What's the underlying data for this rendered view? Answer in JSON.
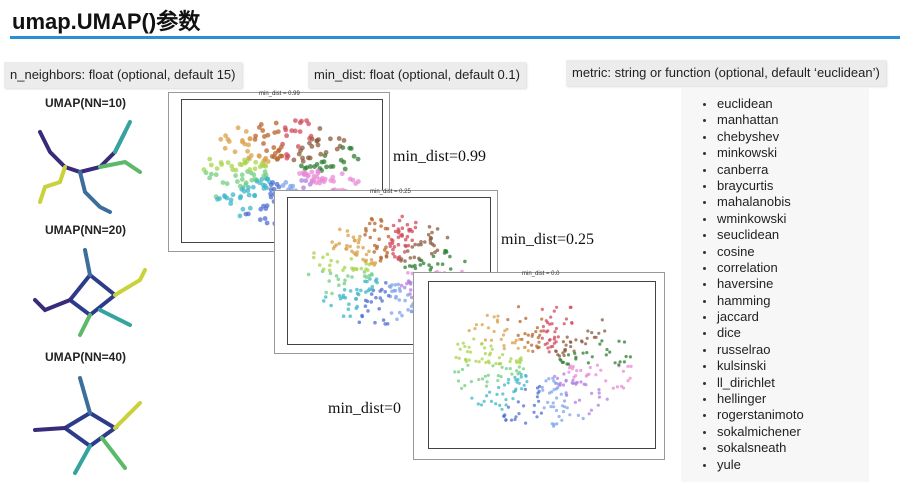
{
  "title": "umap.UMAP()参数",
  "params": {
    "n_neighbors": "n_neighbors: float (optional, default 15)",
    "min_dist": "min_dist: float (optional, default 0.1)",
    "metric": "metric: string or function (optional, default ‘euclidean’)"
  },
  "nn_examples": [
    "UMAP(NN=10)",
    "UMAP(NN=20)",
    "UMAP(NN=40)"
  ],
  "min_dist_plots": [
    {
      "plot_title": "min_dist = 0.99",
      "label": "min_dist=0.99"
    },
    {
      "plot_title": "min_dist = 0.25",
      "label": "min_dist=0.25"
    },
    {
      "plot_title": "min_dist = 0.0",
      "label": "min_dist=0"
    }
  ],
  "metrics": [
    "euclidean",
    "manhattan",
    "chebyshev",
    "minkowski",
    "canberra",
    "braycurtis",
    "mahalanobis",
    "wminkowski",
    "seuclidean",
    "cosine",
    "correlation",
    "haversine",
    "hamming",
    "jaccard",
    "dice",
    "russelrao",
    "kulsinski",
    "ll_dirichlet",
    "hellinger",
    "rogerstanimoto",
    "sokalmichener",
    "sokalsneath",
    "yule"
  ],
  "colors": {
    "accent": "#2b8fd6",
    "param_bg": "#ececec",
    "panel_bg": "#f7f7f7"
  }
}
